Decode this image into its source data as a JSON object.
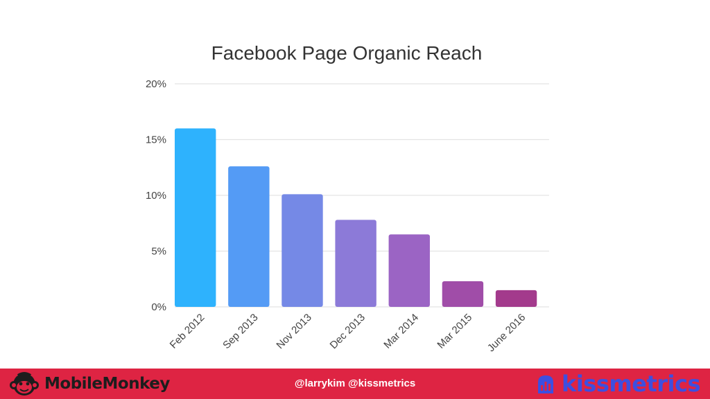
{
  "chart_data": {
    "type": "bar",
    "title": "Facebook Page Organic Reach",
    "categories": [
      "Feb 2012",
      "Sep 2013",
      "Nov 2013",
      "Dec 2013",
      "Mar 2014",
      "Mar 2015",
      "June 2016"
    ],
    "values": [
      16,
      12.6,
      10.1,
      7.8,
      6.5,
      2.3,
      1.5
    ],
    "ylim": [
      0,
      20
    ],
    "yticks": [
      "0%",
      "5%",
      "10%",
      "15%",
      "20%"
    ],
    "ytick_values": [
      0,
      5,
      10,
      15,
      20
    ],
    "grid": true,
    "bar_colors": [
      "#2eb2fd",
      "#549bf5",
      "#7589e6",
      "#8c7ad8",
      "#9b64c4",
      "#a04da8",
      "#a33a8c"
    ]
  },
  "footer": {
    "brand_left": "MobileMonkey",
    "handles": "@larrykim @kissmetrics",
    "brand_right": "kissmetrics",
    "left_icon": "monkey-icon",
    "right_icon": "bar-chart-icon",
    "background_color": "#de2443"
  }
}
